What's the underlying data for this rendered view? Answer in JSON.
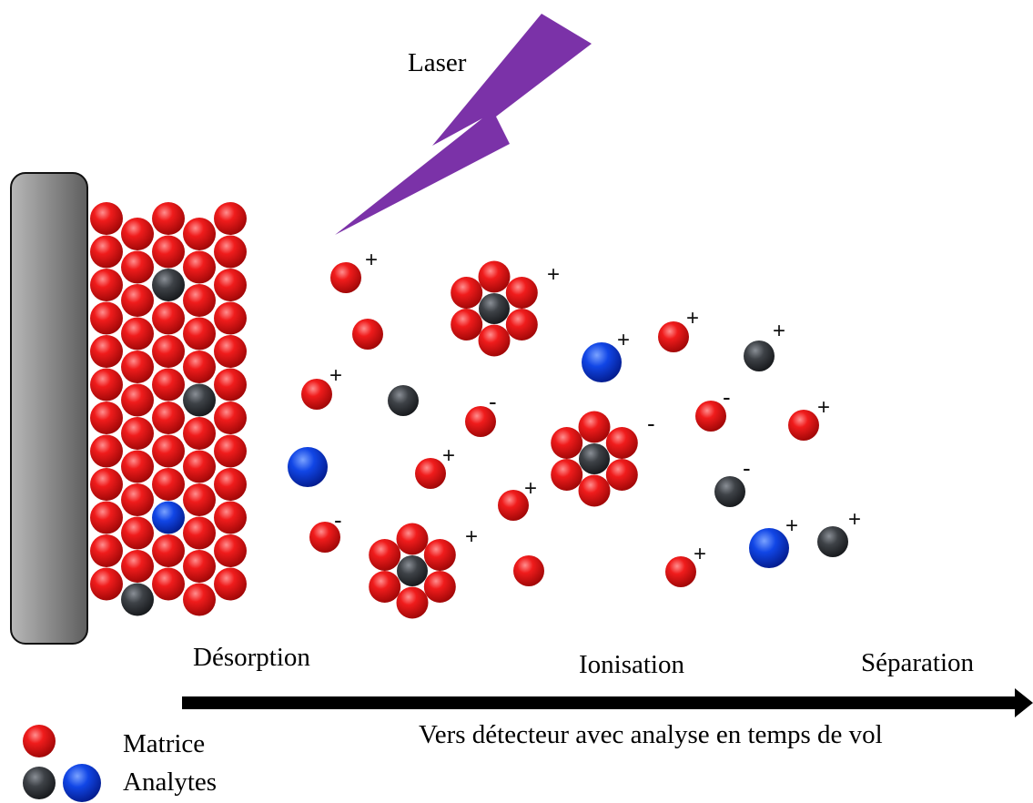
{
  "labels": {
    "laser": "Laser",
    "desorption": "Désorption",
    "ionisation": "Ionisation",
    "separation": "Séparation",
    "arrow_caption": "Vers détecteur avec analyse en temps de vol"
  },
  "legend": {
    "matrix_label": "Matrice",
    "analytes_label": "Analytes"
  },
  "ion_signs": {
    "positive": "+",
    "negative": "-"
  },
  "colors": {
    "matrix": "#e8141c",
    "analyte_dark": "#3c4046",
    "analyte_blue": "#1048e0",
    "laser": "#7b32a8",
    "target_plate": "#8c8c8c",
    "arrow": "#000000"
  }
}
